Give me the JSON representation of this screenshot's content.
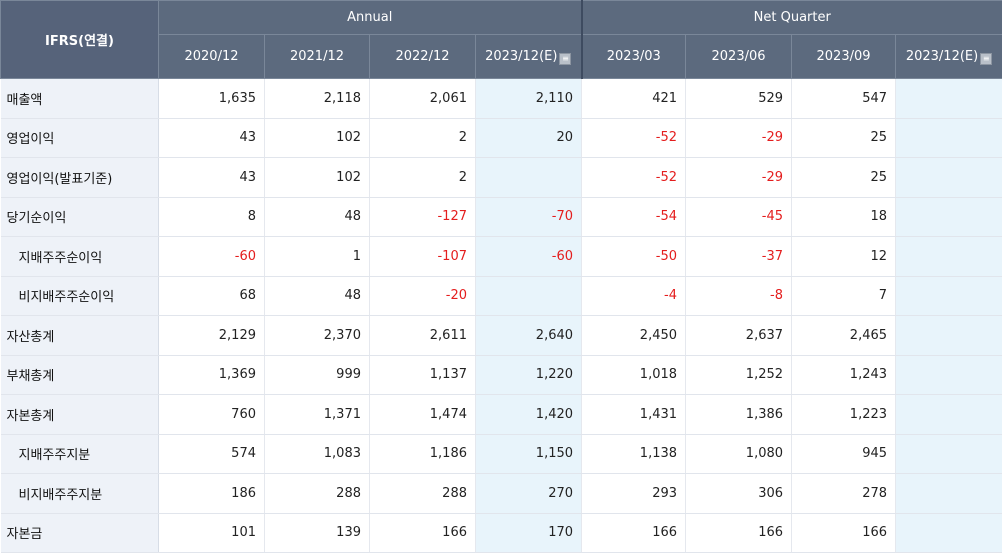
{
  "header": {
    "corner_label": "IFRS(연결)",
    "annual_label": "Annual",
    "quarter_label": "Net Quarter",
    "periods": [
      "2020/12",
      "2021/12",
      "2022/12",
      "2023/12(E)",
      "2023/03",
      "2023/06",
      "2023/09",
      "2023/12(E)"
    ],
    "estimate_icon": "info-icon"
  },
  "rows": [
    {
      "label": "매출액",
      "values": [
        "1,635",
        "2,118",
        "2,061",
        "2,110",
        "421",
        "529",
        "547",
        ""
      ]
    },
    {
      "label": "영업이익",
      "values": [
        "43",
        "102",
        "2",
        "20",
        "-52",
        "-29",
        "25",
        ""
      ]
    },
    {
      "label": "영업이익(발표기준)",
      "values": [
        "43",
        "102",
        "2",
        "",
        "-52",
        "-29",
        "25",
        ""
      ]
    },
    {
      "label": "당기순이익",
      "values": [
        "8",
        "48",
        "-127",
        "-70",
        "-54",
        "-45",
        "18",
        ""
      ]
    },
    {
      "label": "지배주주순이익",
      "values": [
        "-60",
        "1",
        "-107",
        "-60",
        "-50",
        "-37",
        "12",
        ""
      ]
    },
    {
      "label": "비지배주주순이익",
      "values": [
        "68",
        "48",
        "-20",
        "",
        "-4",
        "-8",
        "7",
        ""
      ]
    },
    {
      "label": "자산총계",
      "values": [
        "2,129",
        "2,370",
        "2,611",
        "2,640",
        "2,450",
        "2,637",
        "2,465",
        ""
      ]
    },
    {
      "label": "부채총계",
      "values": [
        "1,369",
        "999",
        "1,137",
        "1,220",
        "1,018",
        "1,252",
        "1,243",
        ""
      ]
    },
    {
      "label": "자본총계",
      "values": [
        "760",
        "1,371",
        "1,474",
        "1,420",
        "1,431",
        "1,386",
        "1,223",
        ""
      ]
    },
    {
      "label": "지배주주지분",
      "values": [
        "574",
        "1,083",
        "1,186",
        "1,150",
        "1,138",
        "1,080",
        "945",
        ""
      ]
    },
    {
      "label": "비지배주주지분",
      "values": [
        "186",
        "288",
        "288",
        "270",
        "293",
        "306",
        "278",
        ""
      ]
    },
    {
      "label": "자본금",
      "values": [
        "101",
        "139",
        "166",
        "170",
        "166",
        "166",
        "166",
        ""
      ]
    }
  ],
  "colors": {
    "header_bg": "#5c6a7e",
    "label_bg": "#eef2f8",
    "estimate_bg": "#e8f4fb",
    "negative": "#e41d1d"
  }
}
